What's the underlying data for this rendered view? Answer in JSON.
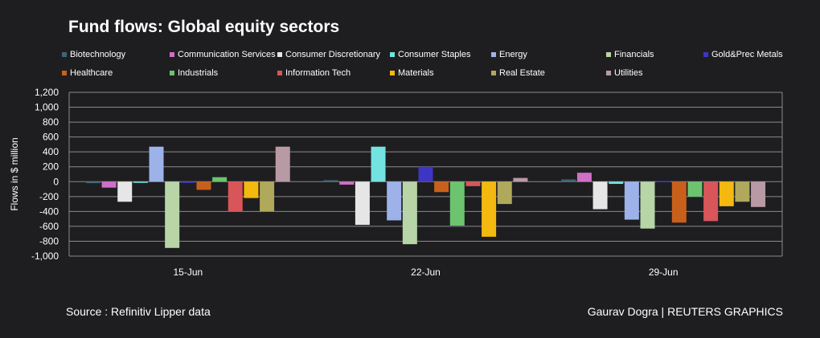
{
  "title": "Fund flows: Global equity sectors",
  "source": "Source : Refinitiv Lipper data",
  "credit": "Gaurav Dogra | REUTERS GRAPHICS",
  "chart_data": {
    "type": "bar",
    "title": "Fund flows: Global equity sectors",
    "ylabel": "Flows in $ million",
    "xlabel": "",
    "ylim": [
      -1000,
      1200
    ],
    "yticks": [
      1200,
      1000,
      800,
      600,
      400,
      200,
      0,
      -200,
      -400,
      -600,
      -800,
      -1000
    ],
    "ytick_labels": [
      "1,200",
      "1,000",
      "800",
      "600",
      "400",
      "200",
      "0",
      "-200",
      "-400",
      "-600",
      "-800",
      "-1,000"
    ],
    "grid": true,
    "legend_position": "top",
    "categories": [
      "15-Jun",
      "22-Jun",
      "29-Jun"
    ],
    "series": [
      {
        "name": "Biotechnology",
        "color": "#3d6675",
        "values": [
          -20,
          20,
          30
        ]
      },
      {
        "name": "Communication Services",
        "color": "#cf6fc7",
        "values": [
          -80,
          -40,
          120
        ]
      },
      {
        "name": "Consumer Discretionary",
        "color": "#e6e6e6",
        "values": [
          -270,
          -580,
          -370
        ]
      },
      {
        "name": "Consumer Staples",
        "color": "#72e3e0",
        "values": [
          -10,
          470,
          -30
        ]
      },
      {
        "name": "Energy",
        "color": "#9eb2ea",
        "values": [
          470,
          -520,
          -510
        ]
      },
      {
        "name": "Financials",
        "color": "#b7d5a7",
        "values": [
          -890,
          -840,
          -630
        ]
      },
      {
        "name": "Gold&Prec Metals",
        "color": "#3f35c4",
        "values": [
          -10,
          200,
          10
        ]
      },
      {
        "name": "Healthcare",
        "color": "#c8601b",
        "values": [
          -110,
          -140,
          -550
        ]
      },
      {
        "name": "Industrials",
        "color": "#6cc46f",
        "values": [
          60,
          -590,
          -200
        ]
      },
      {
        "name": "Information Tech",
        "color": "#d85559",
        "values": [
          -400,
          -60,
          -530
        ]
      },
      {
        "name": "Materials",
        "color": "#f3b90e",
        "values": [
          -220,
          -740,
          -330
        ]
      },
      {
        "name": "Real Estate",
        "color": "#b0a85b",
        "values": [
          -400,
          -300,
          -270
        ]
      },
      {
        "name": "Utilities",
        "color": "#b89aa5",
        "values": [
          470,
          50,
          -340
        ]
      }
    ]
  }
}
